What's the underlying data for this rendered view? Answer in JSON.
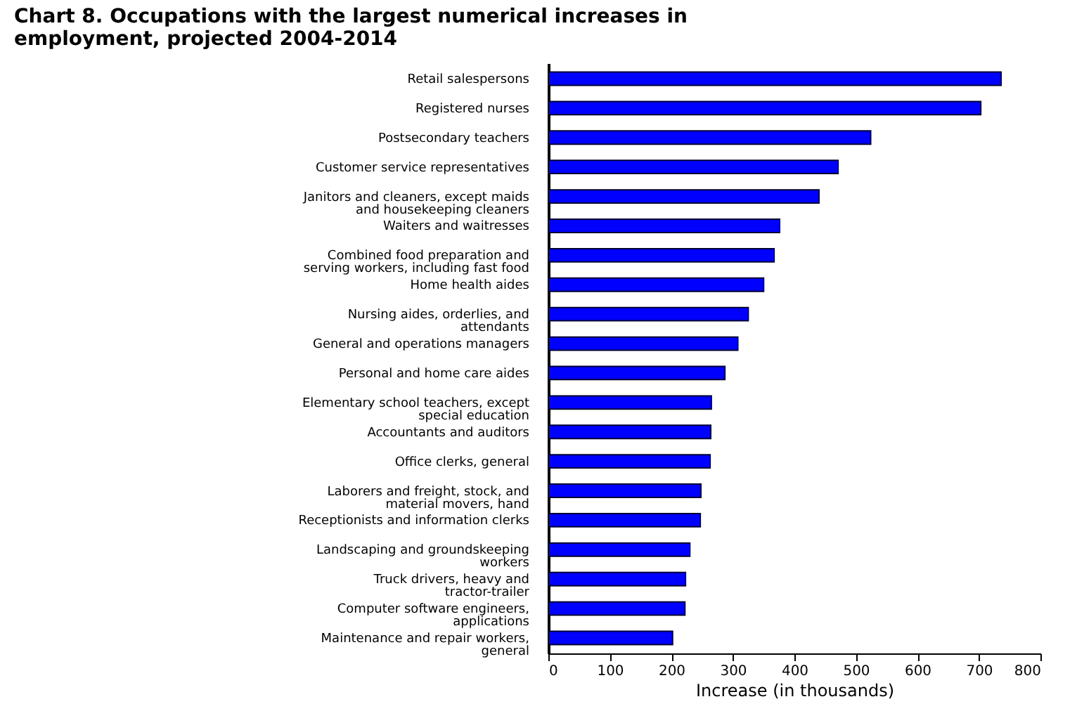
{
  "chart_data": {
    "type": "bar",
    "orientation": "horizontal",
    "title": "Chart 8.  Occupations with the largest numerical increases in employment, projected 2004-2014",
    "xlabel": "Increase (in thousands)",
    "categories": [
      "Retail salespersons",
      "Registered nurses",
      "Postsecondary teachers",
      "Customer service representatives",
      "Janitors and cleaners, except maids and housekeeping cleaners",
      "Waiters and waitresses",
      "Combined food preparation and serving workers, including fast food",
      "Home health aides",
      "Nursing aides, orderlies, and attendants",
      "General and operations managers",
      "Personal and home care aides",
      "Elementary school teachers, except special education",
      "Accountants and auditors",
      "Office clerks, general",
      "Laborers and freight, stock, and material movers, hand",
      "Receptionists and information clerks",
      "Landscaping and groundskeeping workers",
      "Truck drivers, heavy and tractor-trailer",
      "Computer software engineers, applications",
      "Maintenance and repair workers, general"
    ],
    "values": [
      736,
      703,
      524,
      471,
      440,
      376,
      367,
      350,
      325,
      308,
      287,
      265,
      264,
      263,
      248,
      247,
      230,
      223,
      222,
      202
    ],
    "color": "#0000ff",
    "xlim": [
      0,
      800
    ],
    "xticks": [
      0,
      100,
      200,
      300,
      400,
      500,
      600,
      700,
      800
    ],
    "grid": false
  }
}
